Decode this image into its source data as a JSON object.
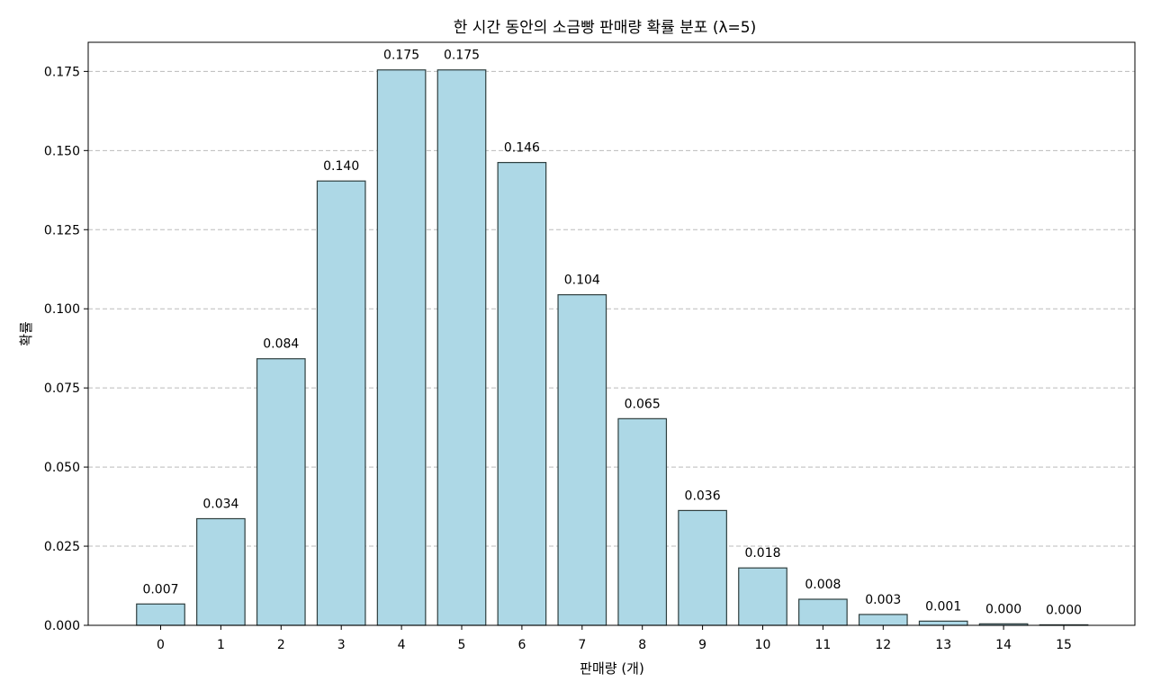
{
  "chart_data": {
    "type": "bar",
    "title": "한 시간 동안의 소금빵 판매량 확률 분포 (λ=5)",
    "xlabel": "판매량 (개)",
    "ylabel": "확률",
    "categories": [
      "0",
      "1",
      "2",
      "3",
      "4",
      "5",
      "6",
      "7",
      "8",
      "9",
      "10",
      "11",
      "12",
      "13",
      "14",
      "15"
    ],
    "values": [
      0.00674,
      0.03369,
      0.08422,
      0.14037,
      0.17547,
      0.17547,
      0.14622,
      0.10444,
      0.06528,
      0.03627,
      0.01813,
      0.00824,
      0.00343,
      0.00132,
      0.00047,
      0.00016
    ],
    "value_labels": [
      "0.007",
      "0.034",
      "0.084",
      "0.140",
      "0.175",
      "0.175",
      "0.146",
      "0.104",
      "0.065",
      "0.036",
      "0.018",
      "0.008",
      "0.003",
      "0.001",
      "0.000",
      "0.000"
    ],
    "yticks": [
      0.0,
      0.025,
      0.05,
      0.075,
      0.1,
      0.125,
      0.15,
      0.175
    ],
    "ytick_labels": [
      "0.000",
      "0.025",
      "0.050",
      "0.075",
      "0.100",
      "0.125",
      "0.150",
      "0.175"
    ],
    "ylim": [
      0,
      0.1842
    ],
    "grid": "y-dashed",
    "colors": {
      "bar_fill": "#add8e6",
      "bar_edge": "#2f3f3f",
      "grid": "#bbbbbb",
      "axis": "#000000"
    }
  }
}
